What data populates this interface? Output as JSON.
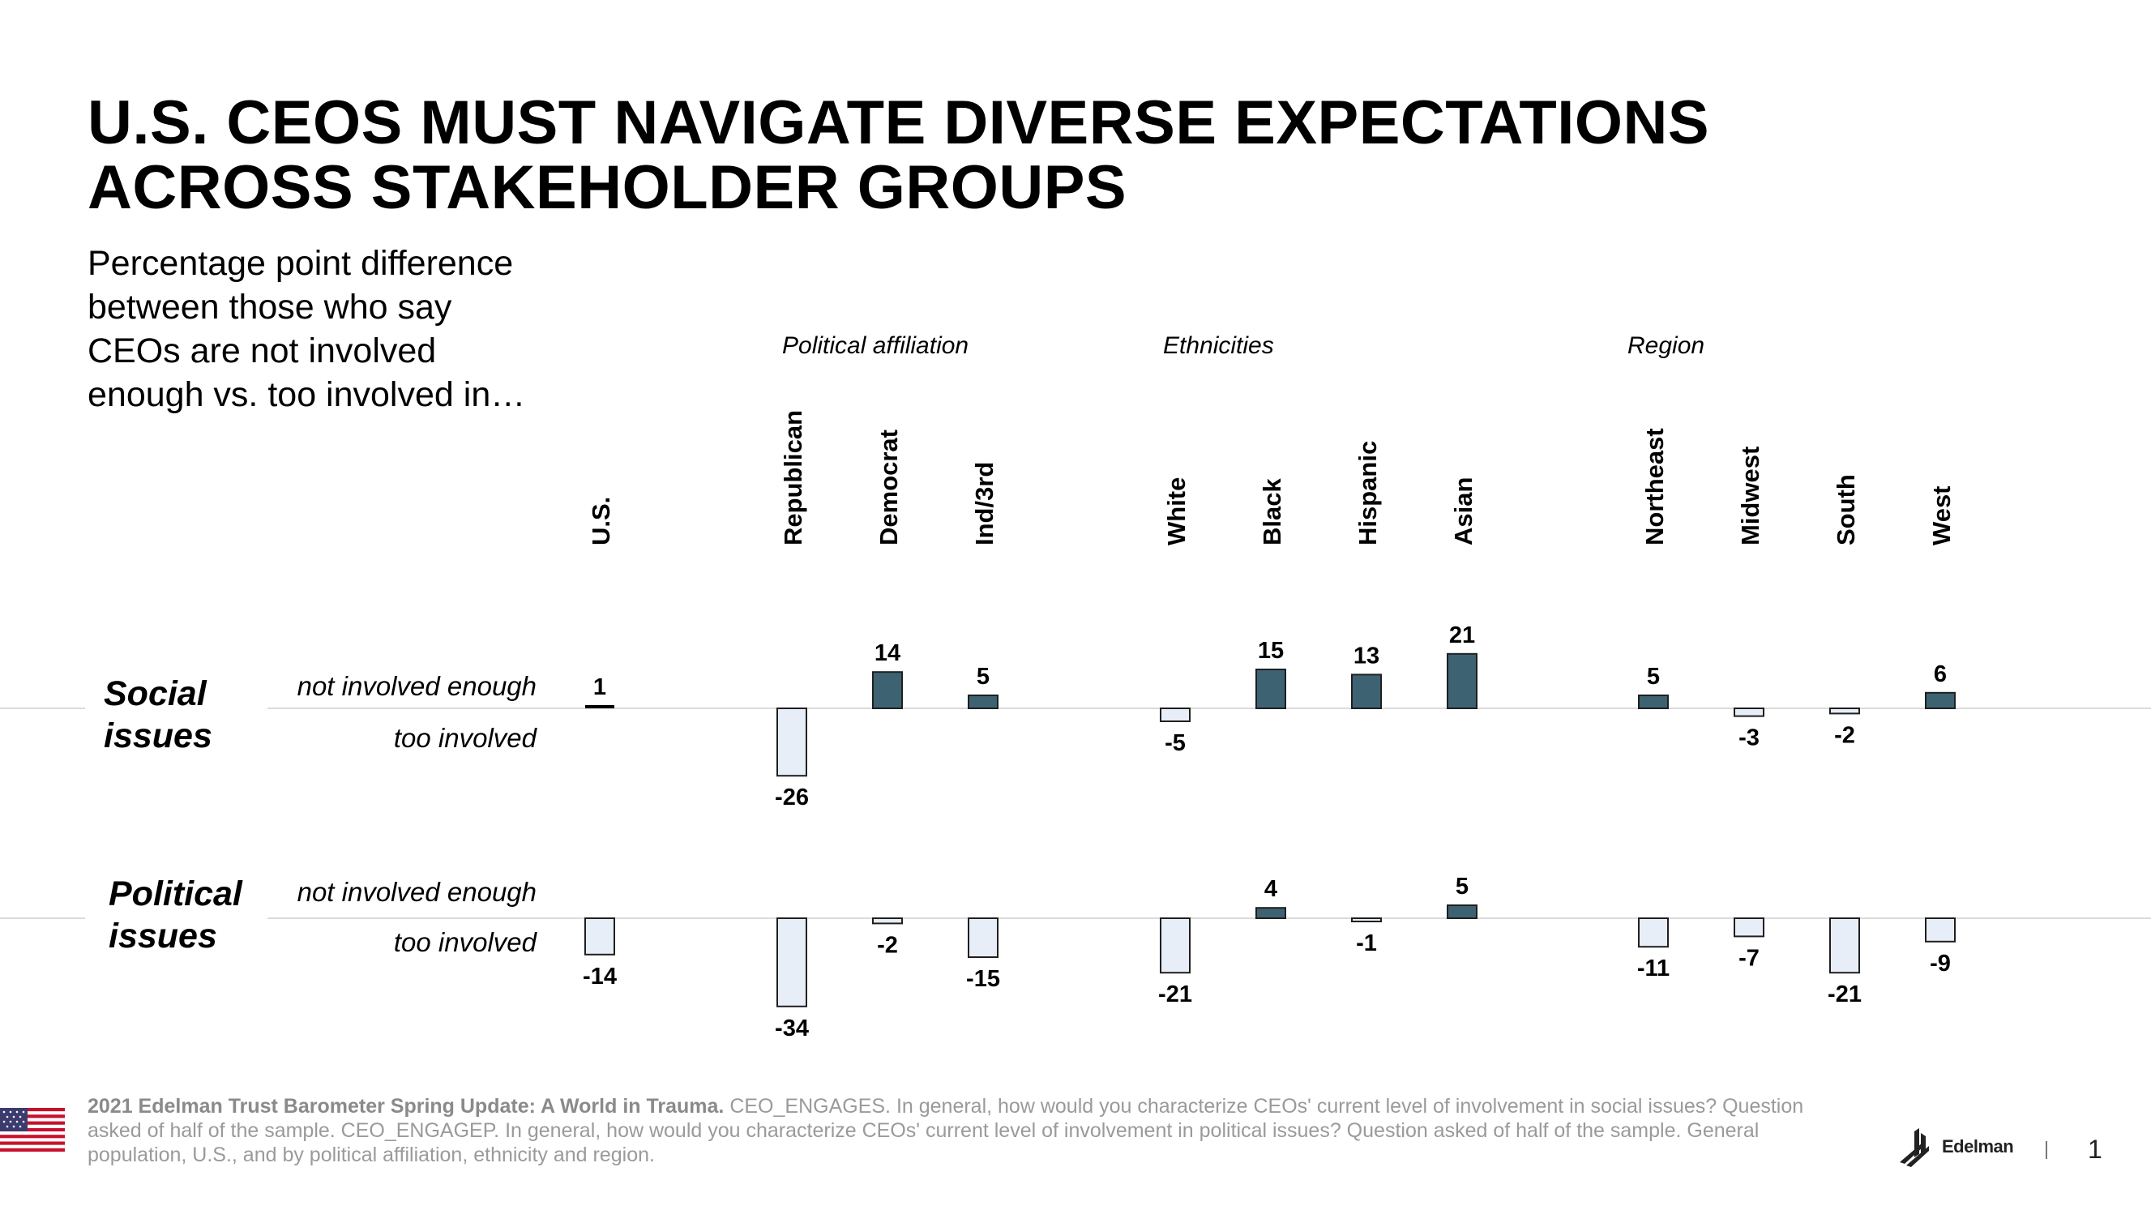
{
  "title": {
    "line1": "U.S. CEOS MUST NAVIGATE DIVERSE EXPECTATIONS",
    "line2": "ACROSS STAKEHOLDER GROUPS"
  },
  "subtitle": "Percentage point difference between those who say CEOs are not involved enough vs. too involved in…",
  "group_labels": {
    "political": "Political affiliation",
    "ethnicities": "Ethnicities",
    "region": "Region"
  },
  "rows": {
    "social": {
      "label_line1": "Social",
      "label_line2": "issues",
      "pos_label": "not involved enough",
      "neg_label": "too involved"
    },
    "political": {
      "label_line1": "Political",
      "label_line2": "issues",
      "pos_label": "not involved enough",
      "neg_label": "too involved"
    }
  },
  "chart_data": {
    "type": "bar",
    "title": "Percentage point difference between those who say CEOs are not involved enough vs. too involved in…",
    "categories": [
      "U.S.",
      "Republican",
      "Democrat",
      "Ind/3rd",
      "White",
      "Black",
      "Hispanic",
      "Asian",
      "Northeast",
      "Midwest",
      "South",
      "West"
    ],
    "category_groups": [
      {
        "name": "",
        "members": [
          "U.S."
        ]
      },
      {
        "name": "Political affiliation",
        "members": [
          "Republican",
          "Democrat",
          "Ind/3rd"
        ]
      },
      {
        "name": "Ethnicities",
        "members": [
          "White",
          "Black",
          "Hispanic",
          "Asian"
        ]
      },
      {
        "name": "Region",
        "members": [
          "Northeast",
          "Midwest",
          "South",
          "West"
        ]
      }
    ],
    "series": [
      {
        "name": "Social issues",
        "values": [
          1,
          -26,
          14,
          5,
          -5,
          15,
          13,
          21,
          5,
          -3,
          -2,
          6
        ]
      },
      {
        "name": "Political issues",
        "values": [
          -14,
          -34,
          -2,
          -15,
          -21,
          4,
          -1,
          5,
          -11,
          -7,
          -21,
          -9
        ]
      }
    ],
    "positive_meaning": "not involved enough",
    "negative_meaning": "too involved",
    "colors": {
      "positive": "#3d6373",
      "negative": "#e8eef8",
      "outline": "#1f1f1f",
      "baseline": "#cfcfcf"
    }
  },
  "footnote": {
    "source": "2021 Edelman Trust Barometer Spring Update: A World in Trauma.",
    "text": "CEO_ENGAGES. In general, how would you characterize CEOs' current level of involvement in social issues? Question asked of half of the sample. CEO_ENGAGEP. In general, how would you characterize CEOs' current level of involvement in political issues? Question asked of half of the sample. General population, U.S., and by political affiliation, ethnicity and region."
  },
  "brand": "Edelman",
  "page_number": "1"
}
